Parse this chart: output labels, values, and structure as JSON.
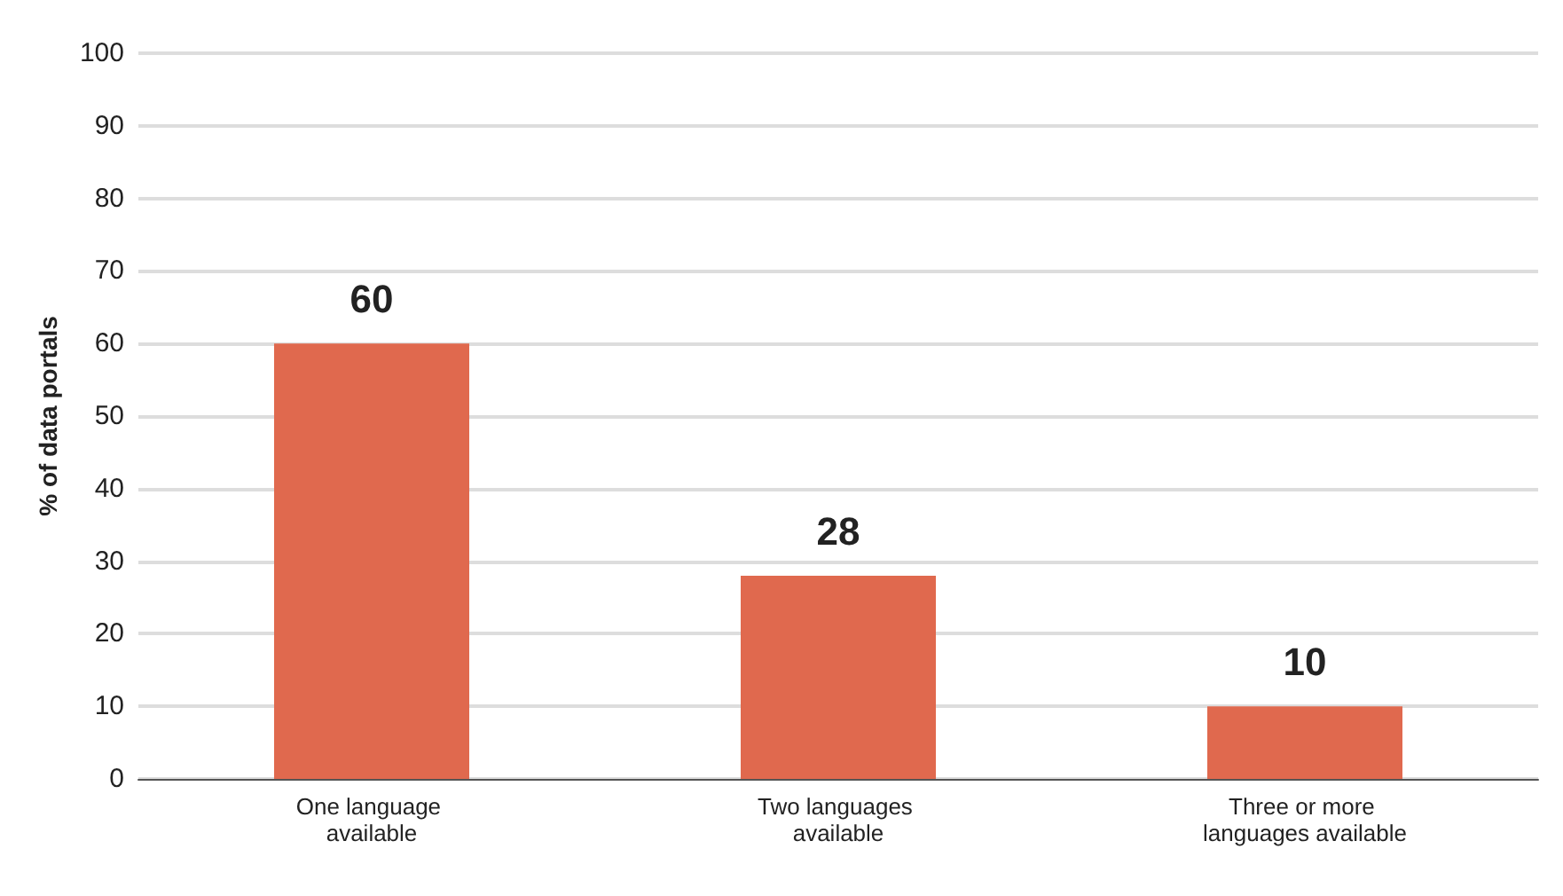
{
  "chart_data": {
    "type": "bar",
    "ylabel": "% of data portals",
    "categories": [
      "One language available",
      "Two languages available",
      "Three or more languages available"
    ],
    "values": [
      60,
      28,
      10
    ],
    "color": "#e0694e",
    "ylim": [
      0,
      100
    ],
    "yticks": [
      0,
      10,
      20,
      30,
      40,
      50,
      60,
      70,
      80,
      90,
      100
    ],
    "grid": "y",
    "data_labels": true
  }
}
